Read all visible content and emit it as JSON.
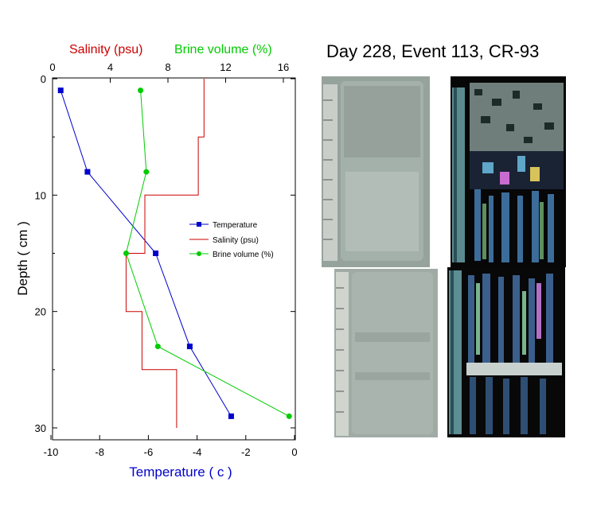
{
  "figure_title": "Day 228, Event 113, CR-93",
  "chart_data": {
    "type": "line",
    "xlabel_bottom": "Temperature ( c )",
    "xlabel_top_salinity": "Salinity (psu)",
    "xlabel_top_brine": "Brine volume (%)",
    "ylabel": "Depth ( cm )",
    "y_range": [
      0,
      30
    ],
    "y_ticks": [
      "0",
      "10",
      "20",
      "30"
    ],
    "x_bottom_range": [
      -10,
      0
    ],
    "x_bottom_ticks": [
      "-10",
      "-8",
      "-6",
      "-4",
      "-2",
      "0"
    ],
    "x_top_range": [
      0,
      16
    ],
    "x_top_ticks": [
      "0",
      "4",
      "8",
      "12",
      "16"
    ],
    "colors": {
      "temperature": "#0000cc",
      "salinity": "#cc0000",
      "brine": "#00cc00"
    },
    "series": [
      {
        "name": "Temperature",
        "axis": "bottom",
        "marker": "square",
        "points": [
          [
            -9.6,
            1
          ],
          [
            -8.5,
            8
          ],
          [
            -5.7,
            15
          ],
          [
            -4.3,
            23
          ],
          [
            -2.6,
            29
          ]
        ]
      },
      {
        "name": "Salinity (psu)",
        "axis": "top",
        "marker": "none",
        "step": true,
        "points": [
          [
            10.5,
            0
          ],
          [
            10.5,
            5
          ],
          [
            10.1,
            5
          ],
          [
            10.1,
            10
          ],
          [
            6.4,
            10
          ],
          [
            6.4,
            15
          ],
          [
            5.1,
            15
          ],
          [
            5.1,
            20
          ],
          [
            6.2,
            20
          ],
          [
            6.2,
            25
          ],
          [
            8.6,
            25
          ],
          [
            8.6,
            30
          ]
        ]
      },
      {
        "name": "Brine volume (%)",
        "axis": "top",
        "marker": "circle",
        "points": [
          [
            6.1,
            1
          ],
          [
            6.5,
            8
          ],
          [
            5.1,
            15
          ],
          [
            7.3,
            23
          ],
          [
            16.4,
            29
          ]
        ]
      }
    ],
    "legend_position": "right-middle"
  }
}
